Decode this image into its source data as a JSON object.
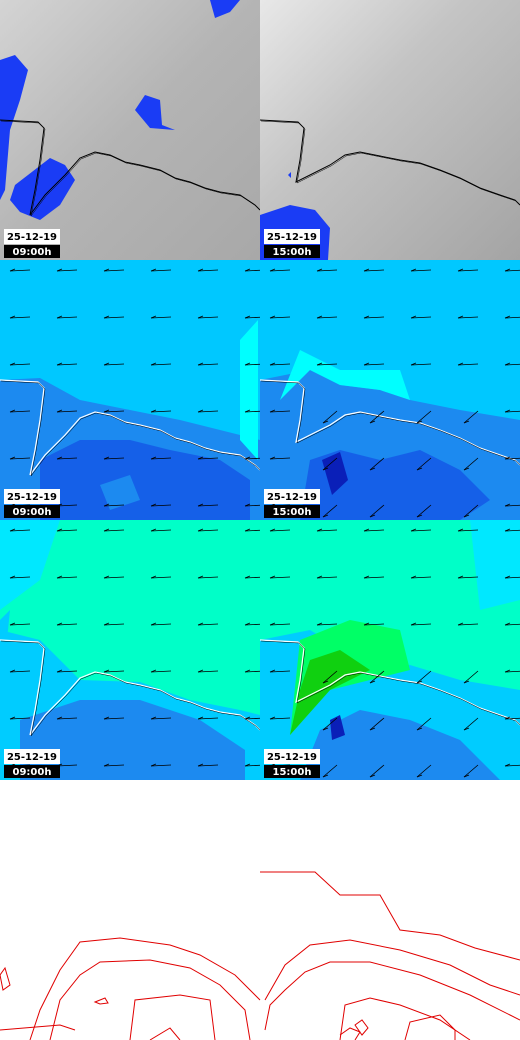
{
  "panels": [
    {
      "date": "25-12-19",
      "time": "09:00h"
    },
    {
      "date": "25-12-19",
      "time": "15:00h"
    },
    {
      "date": "25-12-19",
      "time": "09:00h"
    },
    {
      "date": "25-12-19",
      "time": "15:00h"
    },
    {
      "date": "25-12-19",
      "time": "09:00h"
    },
    {
      "date": "25-12-19",
      "time": "15:00h"
    }
  ]
}
